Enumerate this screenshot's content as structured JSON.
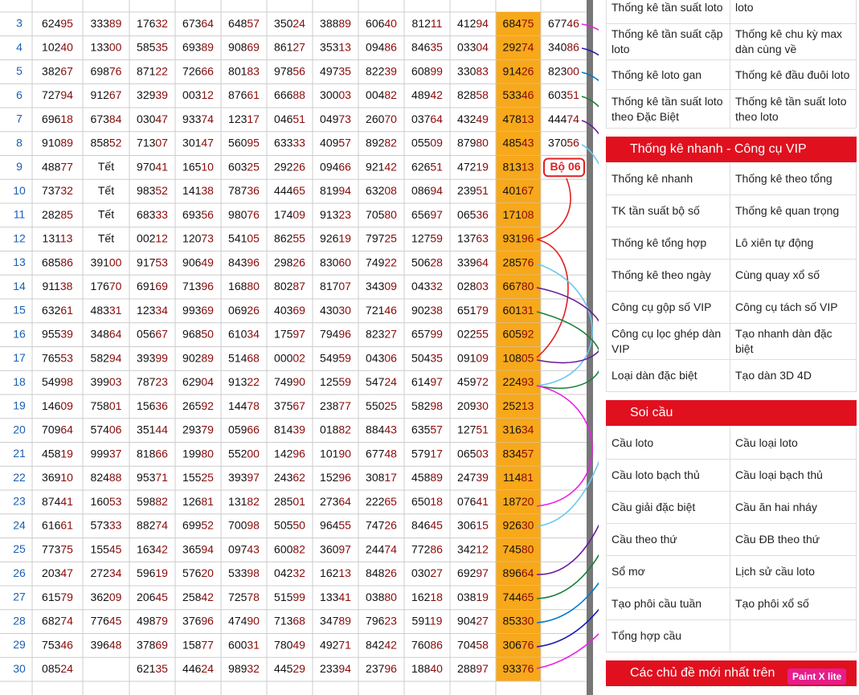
{
  "table": {
    "rows": [
      {
        "day": 3,
        "cells": [
          "62495",
          "33389",
          "17632",
          "67364",
          "64857",
          "35024",
          "38889",
          "60640",
          "81211",
          "41294",
          "68475",
          "67746"
        ]
      },
      {
        "day": 4,
        "cells": [
          "10240",
          "13300",
          "58535",
          "69389",
          "90869",
          "86127",
          "35313",
          "09486",
          "84635",
          "03304",
          "29274",
          "34086"
        ]
      },
      {
        "day": 5,
        "cells": [
          "38267",
          "69876",
          "87122",
          "72666",
          "80183",
          "97856",
          "49735",
          "82239",
          "60899",
          "33083",
          "91426",
          "82300"
        ]
      },
      {
        "day": 6,
        "cells": [
          "72794",
          "91267",
          "32939",
          "00312",
          "87661",
          "66688",
          "30003",
          "00482",
          "48942",
          "82858",
          "53346",
          "60351"
        ]
      },
      {
        "day": 7,
        "cells": [
          "69618",
          "67384",
          "03047",
          "93374",
          "12317",
          "04651",
          "04973",
          "26070",
          "03764",
          "43249",
          "47813",
          "44474"
        ]
      },
      {
        "day": 8,
        "cells": [
          "91089",
          "85852",
          "71307",
          "30147",
          "56095",
          "63333",
          "40957",
          "89282",
          "05509",
          "87980",
          "48543",
          "37056"
        ]
      },
      {
        "day": 9,
        "cells": [
          "48877",
          "Tết",
          "97041",
          "16510",
          "60325",
          "29226",
          "09466",
          "92142",
          "62651",
          "47219",
          "81313"
        ],
        "note": "Bộ 06"
      },
      {
        "day": 10,
        "cells": [
          "73732",
          "Tết",
          "98352",
          "14138",
          "78736",
          "44465",
          "81994",
          "63208",
          "08694",
          "23951",
          "40167"
        ]
      },
      {
        "day": 11,
        "cells": [
          "28285",
          "Tết",
          "68333",
          "69356",
          "98076",
          "17409",
          "91323",
          "70580",
          "65697",
          "06536",
          "17108"
        ]
      },
      {
        "day": 12,
        "cells": [
          "13113",
          "Tết",
          "00212",
          "12073",
          "54105",
          "86255",
          "92619",
          "79725",
          "12759",
          "13763",
          "93196"
        ]
      },
      {
        "day": 13,
        "cells": [
          "68586",
          "39100",
          "91753",
          "90649",
          "84396",
          "29826",
          "83060",
          "74922",
          "50628",
          "33964",
          "28576"
        ]
      },
      {
        "day": 14,
        "cells": [
          "91138",
          "17670",
          "69169",
          "71396",
          "16880",
          "80287",
          "81707",
          "34309",
          "04332",
          "02803",
          "66780"
        ]
      },
      {
        "day": 15,
        "cells": [
          "63261",
          "48331",
          "12334",
          "99369",
          "06926",
          "40369",
          "43030",
          "72146",
          "90238",
          "65179",
          "60131"
        ]
      },
      {
        "day": 16,
        "cells": [
          "95539",
          "34864",
          "05667",
          "96850",
          "61034",
          "17597",
          "79496",
          "82327",
          "65799",
          "02255",
          "60592"
        ]
      },
      {
        "day": 17,
        "cells": [
          "76553",
          "58294",
          "39399",
          "90289",
          "51468",
          "00002",
          "54959",
          "04306",
          "50435",
          "09109",
          "10805"
        ]
      },
      {
        "day": 18,
        "cells": [
          "54998",
          "39903",
          "78723",
          "62904",
          "91322",
          "74990",
          "12559",
          "54724",
          "61497",
          "45972",
          "22493"
        ]
      },
      {
        "day": 19,
        "cells": [
          "14609",
          "75801",
          "15636",
          "26592",
          "14478",
          "37567",
          "23877",
          "55025",
          "58298",
          "20930",
          "25213"
        ]
      },
      {
        "day": 20,
        "cells": [
          "70964",
          "57406",
          "35144",
          "29379",
          "05966",
          "81439",
          "01882",
          "88443",
          "63557",
          "12751",
          "31634"
        ]
      },
      {
        "day": 21,
        "cells": [
          "45819",
          "99937",
          "81866",
          "19980",
          "55200",
          "14296",
          "10190",
          "67748",
          "57917",
          "06503",
          "83457"
        ]
      },
      {
        "day": 22,
        "cells": [
          "36910",
          "82488",
          "95371",
          "15525",
          "39397",
          "24362",
          "15296",
          "30817",
          "45889",
          "24739",
          "11481"
        ]
      },
      {
        "day": 23,
        "cells": [
          "87441",
          "16053",
          "59882",
          "12681",
          "13182",
          "28501",
          "27364",
          "22265",
          "65018",
          "07641",
          "18720"
        ]
      },
      {
        "day": 24,
        "cells": [
          "61661",
          "57333",
          "88274",
          "69952",
          "70098",
          "50550",
          "96455",
          "74726",
          "84645",
          "30615",
          "92630"
        ]
      },
      {
        "day": 25,
        "cells": [
          "77375",
          "15545",
          "16342",
          "36594",
          "09743",
          "60082",
          "36097",
          "24474",
          "77286",
          "34212",
          "74580"
        ]
      },
      {
        "day": 26,
        "cells": [
          "20347",
          "27234",
          "59619",
          "57620",
          "53398",
          "04232",
          "16213",
          "84826",
          "03027",
          "69297",
          "89664"
        ]
      },
      {
        "day": 27,
        "cells": [
          "61579",
          "36209",
          "20645",
          "25842",
          "72578",
          "51599",
          "13341",
          "03880",
          "16218",
          "03819",
          "74465"
        ]
      },
      {
        "day": 28,
        "cells": [
          "68274",
          "77645",
          "49879",
          "37696",
          "47490",
          "71368",
          "34789",
          "79623",
          "59119",
          "90427",
          "85330"
        ]
      },
      {
        "day": 29,
        "cells": [
          "75346",
          "39648",
          "37869",
          "15877",
          "60031",
          "78049",
          "49271",
          "84242",
          "76086",
          "70458",
          "30676"
        ]
      },
      {
        "day": 30,
        "cells": [
          "08524",
          null,
          "62135",
          "44624",
          "98932",
          "44529",
          "23394",
          "23796",
          "18840",
          "28897",
          "93376"
        ]
      }
    ]
  },
  "sidebar": {
    "sections": [
      {
        "items": [
          [
            "Thống kê tần suất loto",
            "loto"
          ],
          [
            "Thống kê tần suất cặp loto",
            "Thống kê chu kỳ max dàn cùng về"
          ],
          [
            "Thống kê loto gan",
            "Thống kê đầu đuôi loto"
          ],
          [
            "Thống kê tần suất loto theo Đặc Biệt",
            "Thống kê tần suất loto theo loto"
          ]
        ]
      },
      {
        "title": "Thống kê nhanh - Công cụ VIP",
        "items": [
          [
            "Thống kê nhanh",
            "Thống kê theo tổng"
          ],
          [
            "TK tần suất bộ số",
            "Thống kê quan trọng"
          ],
          [
            "Thống kê tổng hợp",
            "Lô xiên tự động"
          ],
          [
            "Thống kê theo ngày",
            "Cùng quay xổ số"
          ],
          [
            "Công cụ gộp số VIP",
            "Công cụ tách số VIP"
          ],
          [
            "Công cụ lọc ghép dàn VIP",
            "Tạo nhanh dàn đặc biệt"
          ],
          [
            "Loại dàn đặc biệt",
            "Tạo dàn 3D 4D"
          ]
        ]
      },
      {
        "title": "Soi cầu",
        "items": [
          [
            "Cầu loto",
            "Cầu loại loto"
          ],
          [
            "Cầu loto bạch thủ",
            "Cầu loại bạch thủ"
          ],
          [
            "Cầu giải đặc biệt",
            "Cầu ăn hai nháy"
          ],
          [
            "Cầu theo thứ",
            "Cầu ĐB theo thứ"
          ],
          [
            "Sổ mơ",
            "Lịch sử cầu loto"
          ],
          [
            "Tạo phôi cầu tuần",
            "Tạo phôi xổ số"
          ],
          [
            "Tổng hợp cầu",
            null
          ]
        ]
      },
      {
        "title": "Các chủ đề mới nhất trên"
      }
    ]
  },
  "badge": "Paint X lite"
}
